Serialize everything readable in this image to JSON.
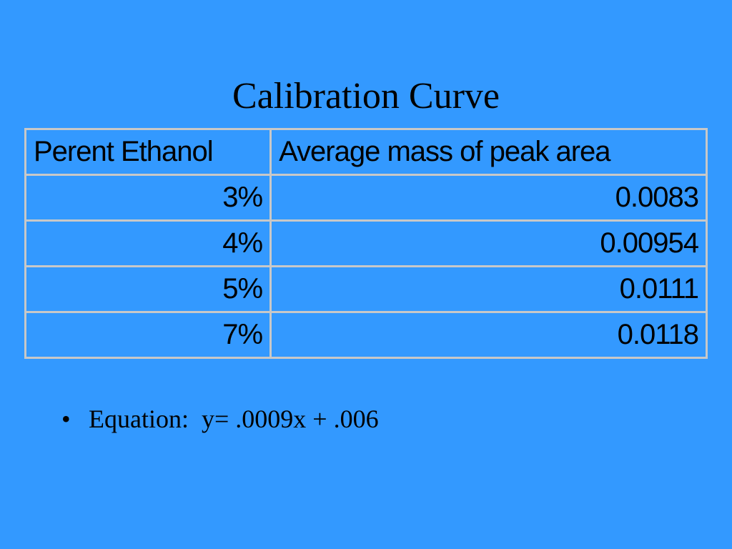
{
  "slide": {
    "title": "Calibration Curve"
  },
  "table": {
    "headers": [
      "Perent Ethanol",
      "Average mass of peak area"
    ],
    "rows": [
      [
        "3%",
        "0.0083"
      ],
      [
        "4%",
        "0.00954"
      ],
      [
        "5%",
        "0.0111"
      ],
      [
        "7%",
        "0.0118"
      ]
    ]
  },
  "bullets": [
    {
      "glyph": "•",
      "text": "Equation:  y= .0009x + .006"
    }
  ],
  "colors": {
    "background": "#3399ff",
    "table_border": "#c8c8c8",
    "text": "#000000"
  }
}
